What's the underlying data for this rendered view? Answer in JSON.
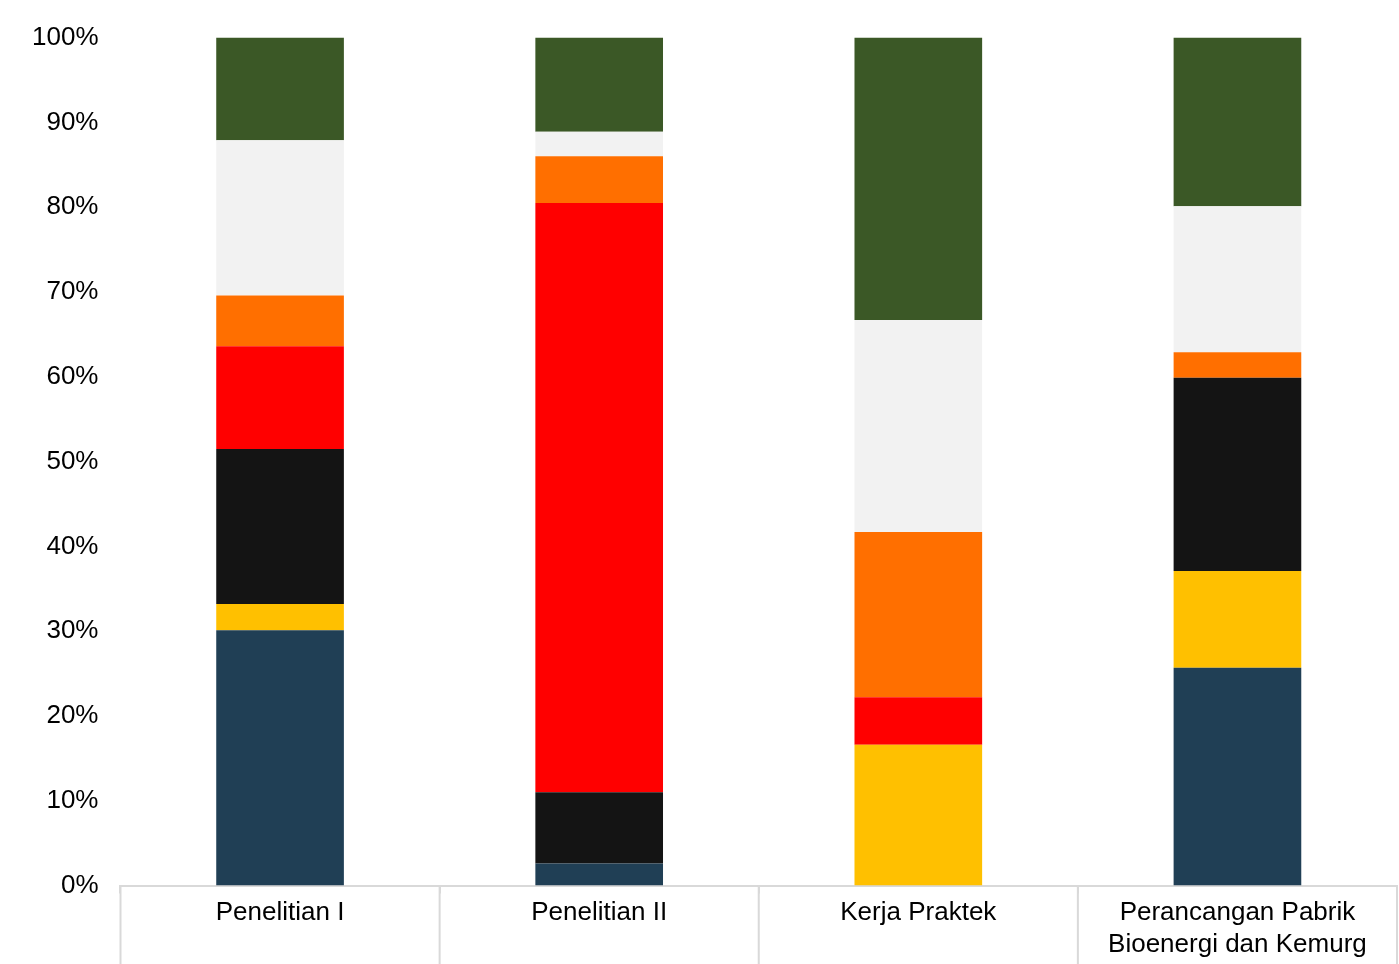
{
  "chart_data": {
    "type": "bar",
    "stacked": true,
    "categories": [
      "Penelitian I",
      "Penelitian II",
      "Kerja Praktek",
      "Perancangan Pabrik Bioenergi dan Kemurg"
    ],
    "series": [
      {
        "color": "#203f55",
        "values": [
          30.1,
          2.6,
          0,
          25.7
        ]
      },
      {
        "color": "#ffc000",
        "values": [
          3.1,
          0,
          16.6,
          11.4
        ]
      },
      {
        "color": "#141414",
        "values": [
          18.3,
          8.4,
          0,
          22.8
        ]
      },
      {
        "color": "#ff0000",
        "values": [
          12.1,
          69.5,
          5.6,
          0
        ]
      },
      {
        "color": "#ff6f00",
        "values": [
          6.0,
          5.5,
          19.5,
          3.0
        ]
      },
      {
        "color": "#f2f2f2",
        "values": [
          18.3,
          2.9,
          25.0,
          17.2
        ]
      },
      {
        "color": "#3b5826",
        "values": [
          12.1,
          11.1,
          33.3,
          19.9
        ]
      }
    ],
    "ylim": [
      0,
      100
    ],
    "yticks": [
      {
        "value": 0,
        "label": "0%"
      },
      {
        "value": 10,
        "label": "10%"
      },
      {
        "value": 20,
        "label": "20%"
      },
      {
        "value": 30,
        "label": "30%"
      },
      {
        "value": 40,
        "label": "40%"
      },
      {
        "value": 50,
        "label": "50%"
      },
      {
        "value": 60,
        "label": "60%"
      },
      {
        "value": 70,
        "label": "70%"
      },
      {
        "value": 80,
        "label": "80%"
      },
      {
        "value": 90,
        "label": "90%"
      },
      {
        "value": 100,
        "label": "100%"
      }
    ],
    "grid": false,
    "legend": false
  }
}
